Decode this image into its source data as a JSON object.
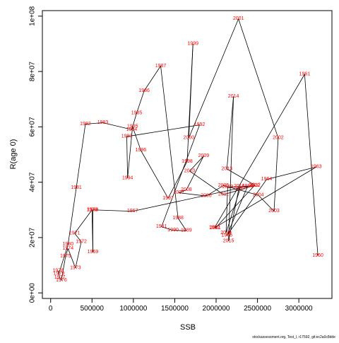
{
  "chart_data": {
    "type": "line",
    "xlabel": "SSB",
    "ylabel": "R(age 0)",
    "xlim": [
      -100000,
      3400000
    ],
    "ylim": [
      -2000000,
      102000000
    ],
    "x_ticks": [
      0,
      500000,
      1000000,
      1500000,
      2000000,
      2500000,
      3000000
    ],
    "x_tick_labels": [
      "0",
      "500000",
      "1000000",
      "1500000",
      "2000000",
      "2500000",
      "3000000"
    ],
    "y_ticks": [
      0,
      20000000,
      40000000,
      60000000,
      80000000,
      100000000
    ],
    "y_tick_labels": [
      "0e+00",
      "2e+07",
      "4e+07",
      "6e+07",
      "8e+07",
      "1e+08"
    ],
    "grid": false,
    "footer": "stockassessment.org, Test_l, r17592, git:ec2a0c8dde",
    "points": [
      {
        "label": "1960",
        "x": 3230000,
        "y": 13500000
      },
      {
        "label": "1961",
        "x": 3070000,
        "y": 79000000
      },
      {
        "label": "1962",
        "x": 1980000,
        "y": 23500000
      },
      {
        "label": "1963",
        "x": 3210000,
        "y": 45500000
      },
      {
        "label": "1964",
        "x": 2610000,
        "y": 41000000
      },
      {
        "label": "1965",
        "x": 2130000,
        "y": 20700000
      },
      {
        "label": "1966",
        "x": 2380000,
        "y": 38500000
      },
      {
        "label": "1967",
        "x": 990000,
        "y": 29500000
      },
      {
        "label": "1968",
        "x": 510000,
        "y": 30000000
      },
      {
        "label": "1969",
        "x": 510000,
        "y": 14700000
      },
      {
        "label": "1970",
        "x": 500000,
        "y": 30000000
      },
      {
        "label": "1971",
        "x": 290000,
        "y": 21500000
      },
      {
        "label": "1972",
        "x": 370000,
        "y": 18500000
      },
      {
        "label": "1973",
        "x": 300000,
        "y": 9000000
      },
      {
        "label": "1974",
        "x": 210000,
        "y": 16000000
      },
      {
        "label": "1975",
        "x": 180000,
        "y": 13200000
      },
      {
        "label": "1976",
        "x": 130000,
        "y": 4500000
      },
      {
        "label": "1977",
        "x": 110000,
        "y": 5500000
      },
      {
        "label": "1978",
        "x": 90000,
        "y": 8000000
      },
      {
        "label": "1979",
        "x": 100000,
        "y": 7000000
      },
      {
        "label": "1980",
        "x": 210000,
        "y": 17500000
      },
      {
        "label": "1981",
        "x": 310000,
        "y": 38000000
      },
      {
        "label": "1982",
        "x": 420000,
        "y": 61000000
      },
      {
        "label": "1983",
        "x": 630000,
        "y": 61500000
      },
      {
        "label": "1984",
        "x": 980000,
        "y": 59000000
      },
      {
        "label": "1985",
        "x": 1040000,
        "y": 65000000
      },
      {
        "label": "1986",
        "x": 1130000,
        "y": 73000000
      },
      {
        "label": "1987",
        "x": 1330000,
        "y": 82000000
      },
      {
        "label": "1988",
        "x": 1540000,
        "y": 27000000
      },
      {
        "label": "1989",
        "x": 1640000,
        "y": 22500000
      },
      {
        "label": "1990",
        "x": 1480000,
        "y": 22600000
      },
      {
        "label": "1991",
        "x": 1340000,
        "y": 23900000
      },
      {
        "label": "1992",
        "x": 1800000,
        "y": 60700000
      },
      {
        "label": "1993",
        "x": 920000,
        "y": 56500000
      },
      {
        "label": "1994",
        "x": 930000,
        "y": 41500000
      },
      {
        "label": "1995",
        "x": 990000,
        "y": 60100000
      },
      {
        "label": "1996",
        "x": 1090000,
        "y": 51500000
      },
      {
        "label": "1997",
        "x": 1420000,
        "y": 34200000
      },
      {
        "label": "1998",
        "x": 1650000,
        "y": 47500000
      },
      {
        "label": "1999",
        "x": 1720000,
        "y": 90000000
      },
      {
        "label": "2000",
        "x": 1670000,
        "y": 56000000
      },
      {
        "label": "2001",
        "x": 2270000,
        "y": 99000000
      },
      {
        "label": "2002",
        "x": 2750000,
        "y": 56000000
      },
      {
        "label": "2003",
        "x": 2700000,
        "y": 29500000
      },
      {
        "label": "2004",
        "x": 2510000,
        "y": 35300000
      },
      {
        "label": "2005",
        "x": 2090000,
        "y": 38800000
      },
      {
        "label": "2006",
        "x": 1880000,
        "y": 35000000
      },
      {
        "label": "2007",
        "x": 1550000,
        "y": 36200000
      },
      {
        "label": "2008",
        "x": 1640000,
        "y": 37200000
      },
      {
        "label": "2009",
        "x": 1850000,
        "y": 49500000
      },
      {
        "label": "2010",
        "x": 1680000,
        "y": 44000000
      },
      {
        "label": "2011",
        "x": 2090000,
        "y": 35500000
      },
      {
        "label": "2012",
        "x": 2470000,
        "y": 38900000
      },
      {
        "label": "2013",
        "x": 2130000,
        "y": 44800000
      },
      {
        "label": "2014",
        "x": 2210000,
        "y": 71000000
      },
      {
        "label": "2015",
        "x": 2150000,
        "y": 18700000
      },
      {
        "label": "2016",
        "x": 2280000,
        "y": 38500000
      },
      {
        "label": "2017",
        "x": 2290000,
        "y": 37600000
      },
      {
        "label": "2018",
        "x": 2120000,
        "y": 21700000
      },
      {
        "label": "2019",
        "x": 2140000,
        "y": 38200000
      },
      {
        "label": "2020",
        "x": 2460000,
        "y": 38700000
      },
      {
        "label": "2021",
        "x": 1990000,
        "y": 23400000
      }
    ]
  }
}
